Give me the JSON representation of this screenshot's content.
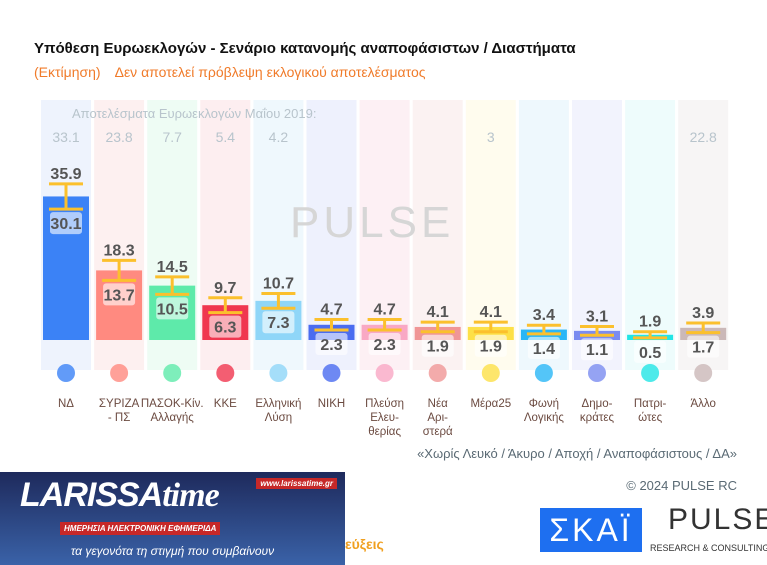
{
  "title": "Υπόθεση Ευρωεκλογών - Σενάριο κατανομής αναποφάσιστων / Διαστήματα",
  "subtitle": [
    "(Εκτίμηση)",
    "Δεν αποτελεί πρόβλεψη εκλογικού αποτελέσματος"
  ],
  "chart_data": {
    "type": "bar",
    "title": "Υπόθεση Ευρωεκλογών - Σενάριο κατανομής αναποφάσιστων / Διαστήματα",
    "reference_label": "Αποτελέσματα Ευρωεκλογών Μαΐου 2019:",
    "categories": [
      "ΝΔ",
      "ΣΥΡΙΖΑ - ΠΣ",
      "ΠΑΣΟΚ-Κίν. Αλλαγής",
      "ΚΚΕ",
      "Ελληνική Λύση",
      "ΝΙΚΗ",
      "Πλεύση Ελευ-θερίας",
      "Νέα Αρι-στερά",
      "Μέρα25",
      "Φωνή Λογικής",
      "Δημο-κράτες",
      "Πατρι-ώτες",
      "Άλλο"
    ],
    "label_lines": [
      [
        "ΝΔ"
      ],
      [
        "ΣΥΡΙΖΑ",
        "- ΠΣ"
      ],
      [
        "ΠΑΣΟΚ-Κίν.",
        "Αλλαγής"
      ],
      [
        "ΚΚΕ"
      ],
      [
        "Ελληνική",
        "Λύση"
      ],
      [
        "ΝΙΚΗ"
      ],
      [
        "Πλεύση",
        "Ελευ-",
        "θερίας"
      ],
      [
        "Νέα",
        "Αρι-",
        "στερά"
      ],
      [
        "Μέρα25"
      ],
      [
        "Φωνή",
        "Λογικής"
      ],
      [
        "Δημο-",
        "κράτες"
      ],
      [
        "Πατρι-",
        "ώτες"
      ],
      [
        "Άλλο"
      ]
    ],
    "high": [
      35.9,
      18.3,
      14.5,
      9.7,
      10.7,
      4.7,
      4.7,
      4.1,
      4.1,
      3.4,
      3.1,
      1.9,
      3.9
    ],
    "low": [
      30.1,
      13.7,
      10.5,
      6.3,
      7.3,
      2.3,
      2.3,
      1.9,
      1.9,
      1.4,
      1.1,
      0.5,
      1.7
    ],
    "ref_2019": [
      "33.1",
      "23.8",
      "7.7",
      "5.4",
      "4.2",
      "",
      "",
      "",
      "3",
      "",
      "",
      "",
      "22.8"
    ],
    "colors": [
      "#3b82f6",
      "#ff8a80",
      "#5eeaaa",
      "#f0364f",
      "#8fd6f8",
      "#4a6cf0",
      "#f9a8c4",
      "#f09696",
      "#fde047",
      "#29b6f6",
      "#7b8cf0",
      "#22e5e5",
      "#cbb8b8"
    ],
    "bg_colors": [
      "#eef3fd",
      "#fdf0f0",
      "#eefcf4",
      "#fdeef0",
      "#eff8fd",
      "#eef1fd",
      "#fdf0f4",
      "#fbf2f2",
      "#fffcee",
      "#eef8fd",
      "#f2f3fd",
      "#eefcfc",
      "#f7f5f5"
    ],
    "error_bar_color": "#fbc02d"
  },
  "footnote": "«Χωρίς Λευκό / Άκυρο / Αποχή / Αναποφάσιστους / ΔΑ»",
  "copyright": "© 2024 PULSE RC",
  "watermark": "PULSE",
  "larissa": {
    "logo": "LARISSAtime",
    "url": "www.larissatime.gr",
    "tag": "ΗΜΕΡΗΣΙΑ ΗΛΕΚΤΡΟΝΙΚΗ ΕΦΗΜΕΡΙΔΑ",
    "slogan": "τα γεγονότα τη στιγμή που συμβαίνουν"
  },
  "partial_text": "εύξεις",
  "skai": "ΣΚΑΪ",
  "pulse": {
    "name": "PULSE",
    "sub": "RESEARCH & CONSULTING"
  }
}
